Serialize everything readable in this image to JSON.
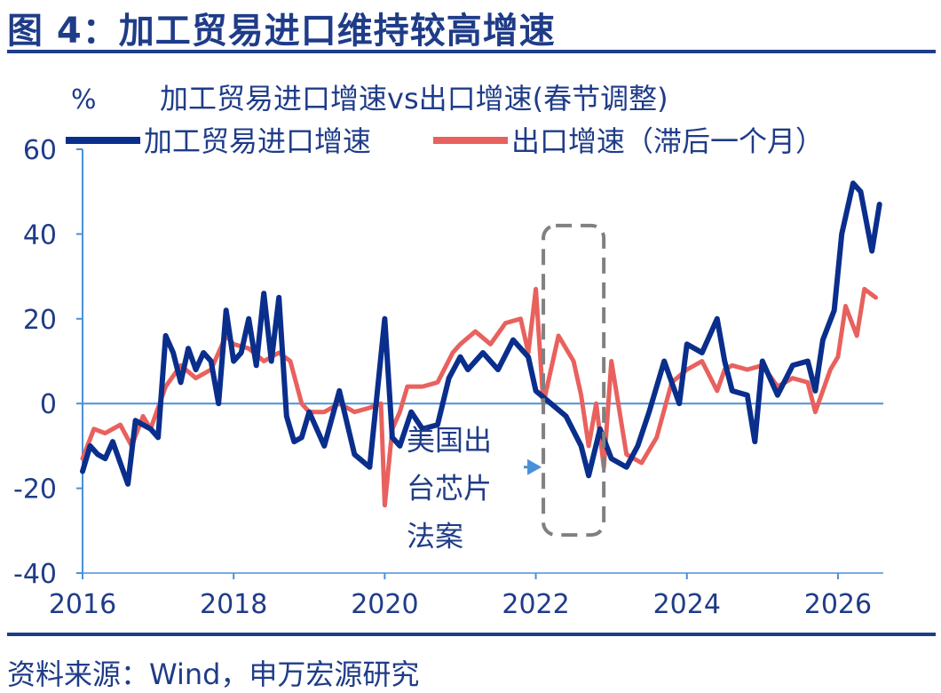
{
  "figure_title": "图 4：加工贸易进口维持较高增速",
  "source_note": "资料来源：Wind，申万宏源研究",
  "colors": {
    "title": "#1f3c88",
    "processing_import": "#0a2e8c",
    "exports": "#e8615e",
    "axis": "#4a90d9",
    "text": "#1f3c88",
    "box": "#808080"
  },
  "chart_data": {
    "type": "line",
    "title": "加工贸易进口增速vs出口增速(春节调整)",
    "y_unit_label": "%",
    "xlim": [
      2016.0,
      2026.6
    ],
    "ylim": [
      -40,
      60
    ],
    "x_ticks": [
      "2016",
      "2018",
      "2020",
      "2022",
      "2024",
      "2026"
    ],
    "y_ticks": [
      "60",
      "40",
      "20",
      "0",
      "-20",
      "-40"
    ],
    "legend_position": "top",
    "grid": false,
    "series": [
      {
        "name": "加工贸易进口增速",
        "color": "#0a2e8c",
        "x": [
          2016.0,
          2016.1,
          2016.2,
          2016.3,
          2016.4,
          2016.5,
          2016.6,
          2016.7,
          2016.8,
          2016.9,
          2017.0,
          2017.1,
          2017.2,
          2017.3,
          2017.4,
          2017.5,
          2017.6,
          2017.7,
          2017.8,
          2017.9,
          2018.0,
          2018.1,
          2018.2,
          2018.3,
          2018.4,
          2018.5,
          2018.6,
          2018.7,
          2018.8,
          2018.9,
          2019.0,
          2019.2,
          2019.4,
          2019.6,
          2019.8,
          2020.0,
          2020.1,
          2020.2,
          2020.35,
          2020.5,
          2020.7,
          2020.85,
          2021.0,
          2021.1,
          2021.3,
          2021.5,
          2021.7,
          2021.9,
          2022.0,
          2022.2,
          2022.4,
          2022.6,
          2022.7,
          2022.85,
          2023.0,
          2023.2,
          2023.35,
          2023.5,
          2023.7,
          2023.9,
          2024.0,
          2024.2,
          2024.4,
          2024.5,
          2024.6,
          2024.8,
          2024.9,
          2025.0,
          2025.2,
          2025.4,
          2025.6,
          2025.7,
          2025.8,
          2025.95,
          2026.05,
          2026.2,
          2026.3,
          2026.45,
          2026.55
        ],
        "y": [
          -16,
          -10,
          -12,
          -13,
          -9,
          -14,
          -19,
          -4,
          -5,
          -6,
          -8,
          16,
          12,
          5,
          13,
          8,
          12,
          10,
          0,
          22,
          10,
          12,
          20,
          9,
          26,
          10,
          25,
          -3,
          -9,
          -8,
          -2,
          -10,
          3,
          -12,
          -15,
          20,
          -8,
          -10,
          -2,
          -6,
          -5,
          6,
          11,
          8,
          12,
          8,
          15,
          11,
          3,
          0,
          -3,
          -10,
          -17,
          -6,
          -13,
          -15,
          -10,
          -2,
          10,
          0,
          14,
          12,
          20,
          10,
          3,
          2,
          -9,
          10,
          2,
          9,
          10,
          3,
          15,
          22,
          40,
          52,
          50,
          36,
          47
        ]
      },
      {
        "name": "出口增速（滞后一个月）",
        "color": "#e8615e",
        "x": [
          2016.0,
          2016.15,
          2016.3,
          2016.5,
          2016.65,
          2016.8,
          2016.9,
          2017.1,
          2017.3,
          2017.5,
          2017.7,
          2017.9,
          2018.0,
          2018.2,
          2018.4,
          2018.6,
          2018.75,
          2018.9,
          2019.0,
          2019.2,
          2019.4,
          2019.6,
          2019.8,
          2019.95,
          2020.0,
          2020.1,
          2020.2,
          2020.3,
          2020.5,
          2020.7,
          2020.9,
          2021.0,
          2021.2,
          2021.4,
          2021.6,
          2021.8,
          2021.9,
          2022.0,
          2022.1,
          2022.3,
          2022.5,
          2022.6,
          2022.7,
          2022.8,
          2022.9,
          2023.0,
          2023.2,
          2023.4,
          2023.6,
          2023.8,
          2024.0,
          2024.2,
          2024.4,
          2024.5,
          2024.6,
          2024.8,
          2025.0,
          2025.2,
          2025.4,
          2025.6,
          2025.7,
          2025.9,
          2026.0,
          2026.1,
          2026.25,
          2026.35,
          2026.5
        ],
        "y": [
          -13,
          -6,
          -7,
          -5,
          -10,
          -3,
          -6,
          4,
          9,
          6,
          8,
          16,
          14,
          13,
          10,
          12,
          10,
          0,
          -2,
          -2,
          0,
          -2,
          -1,
          0,
          -24,
          -6,
          -2,
          4,
          4,
          5,
          12,
          14,
          17,
          14,
          19,
          20,
          12,
          27,
          0,
          16,
          10,
          2,
          -10,
          0,
          -15,
          10,
          -12,
          -14,
          -8,
          5,
          8,
          10,
          3,
          8,
          9,
          8,
          9,
          4,
          6,
          5,
          -2,
          8,
          11,
          23,
          16,
          27,
          25
        ]
      }
    ],
    "annotation": {
      "text_lines": [
        "美国出",
        "台芯片",
        "法案"
      ],
      "box_x": [
        2022.1,
        2022.9
      ]
    }
  }
}
